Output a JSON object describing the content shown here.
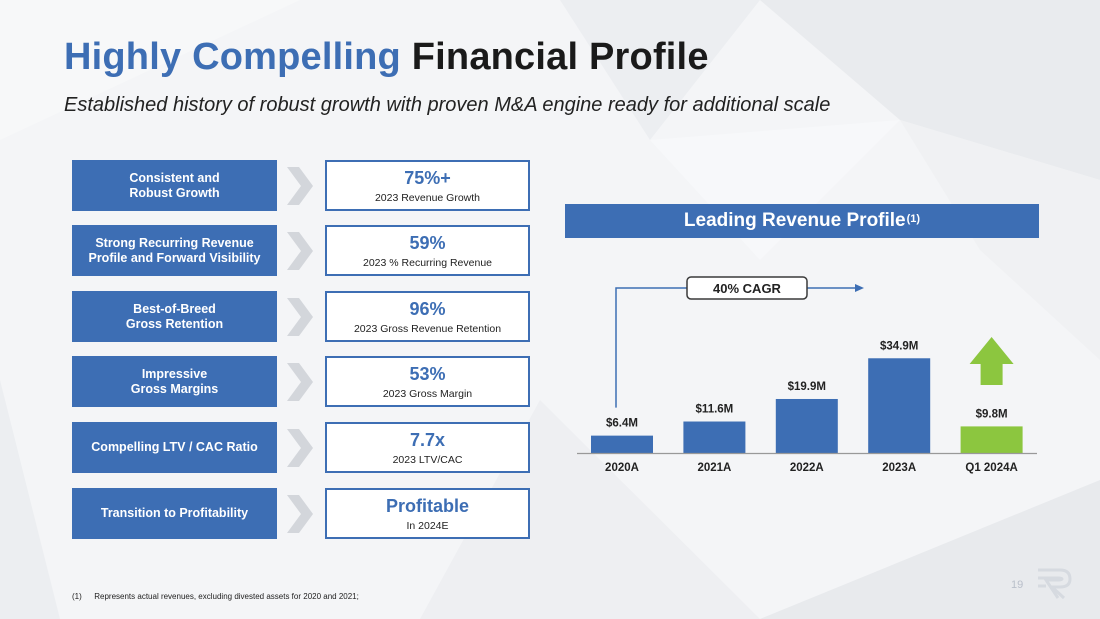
{
  "slide": {
    "title_highlight": "Highly Compelling",
    "title_rest": "Financial Profile",
    "subtitle": "Established history of robust growth with proven M&A engine ready for additional scale",
    "page_number": "19",
    "footnote_marker": "(1)",
    "footnote_text": "Represents actual revenues, excluding divested assets for 2020 and 2021;"
  },
  "metrics": [
    {
      "label": "Consistent and\nRobust Growth",
      "value": "75%+",
      "caption": "2023 Revenue Growth"
    },
    {
      "label": "Strong Recurring Revenue\nProfile and Forward Visibility",
      "value": "59%",
      "caption": "2023 % Recurring Revenue"
    },
    {
      "label": "Best-of-Breed\nGross Retention",
      "value": "96%",
      "caption": "2023 Gross Revenue Retention"
    },
    {
      "label": "Impressive\nGross Margins",
      "value": "53%",
      "caption": "2023 Gross Margin"
    },
    {
      "label": "Compelling LTV / CAC Ratio",
      "value": "7.7x",
      "caption": "2023 LTV/CAC"
    },
    {
      "label": "Transition to Profitability",
      "value": "Profitable",
      "caption": "In 2024E"
    }
  ],
  "colors": {
    "brand_blue": "#3d6eb4",
    "highlight_green": "#8cc63f",
    "axis_gray": "#999999"
  },
  "chart_data": {
    "type": "bar",
    "title": "Leading Revenue Profile",
    "title_superscript": "(1)",
    "categories": [
      "2020A",
      "2021A",
      "2022A",
      "2023A",
      "Q1 2024A"
    ],
    "values": [
      6.4,
      11.6,
      19.9,
      34.9,
      9.8
    ],
    "data_labels": [
      "$6.4M",
      "$11.6M",
      "$19.9M",
      "$34.9M",
      "$9.8M"
    ],
    "bar_colors": [
      "#3d6eb4",
      "#3d6eb4",
      "#3d6eb4",
      "#3d6eb4",
      "#8cc63f"
    ],
    "ylabel": "",
    "xlabel": "",
    "ylim": [
      0,
      35
    ],
    "grid": false,
    "annotation": "40% CAGR",
    "up_arrow_on": "Q1 2024A"
  }
}
